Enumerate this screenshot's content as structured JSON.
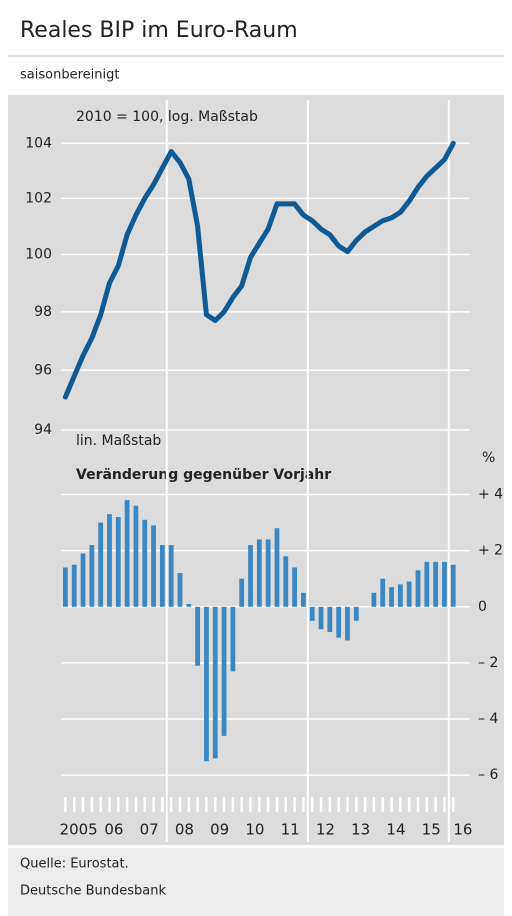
{
  "header": {
    "title": "Reales BIP im Euro-Raum",
    "subtitle": "saisonbereinigt"
  },
  "footer": {
    "source": "Quelle: Eurostat.",
    "publisher": "Deutsche Bundesbank"
  },
  "chart_data": [
    {
      "type": "line",
      "note": "2010 = 100, log. Maßstab",
      "log_scale": true,
      "color": "#0f5a94",
      "x": [
        2005.125,
        2005.375,
        2005.625,
        2005.875,
        2006.125,
        2006.375,
        2006.625,
        2006.875,
        2007.125,
        2007.375,
        2007.625,
        2007.875,
        2008.125,
        2008.375,
        2008.625,
        2008.875,
        2009.125,
        2009.375,
        2009.625,
        2009.875,
        2010.125,
        2010.375,
        2010.625,
        2010.875,
        2011.125,
        2011.375,
        2011.625,
        2011.875,
        2012.125,
        2012.375,
        2012.625,
        2012.875,
        2013.125,
        2013.375,
        2013.625,
        2013.875,
        2014.125,
        2014.375,
        2014.625,
        2014.875,
        2015.125,
        2015.375,
        2015.625,
        2015.875,
        2016.125
      ],
      "values": [
        95.1,
        95.8,
        96.5,
        97.1,
        97.9,
        99.0,
        99.6,
        100.7,
        101.4,
        102.0,
        102.5,
        103.1,
        103.7,
        103.3,
        102.7,
        101.0,
        97.9,
        97.7,
        98.0,
        98.5,
        98.9,
        99.9,
        100.4,
        100.9,
        101.8,
        101.8,
        101.8,
        101.4,
        101.2,
        100.9,
        100.7,
        100.3,
        100.1,
        100.5,
        100.8,
        101.0,
        101.2,
        101.3,
        101.5,
        101.9,
        102.4,
        102.8,
        103.1,
        103.4,
        104.0
      ],
      "xlim": [
        2005,
        2016.6
      ],
      "xgrid": [
        2008,
        2012,
        2016
      ],
      "ylim": [
        94,
        105.6
      ],
      "yticks": [
        94,
        96,
        98,
        100,
        102,
        104
      ]
    },
    {
      "type": "bar",
      "note": "lin. Maßstab",
      "title": "Veränderung gegenüber Vorjahr",
      "unit": "%",
      "color": "#3a87c4",
      "x": [
        2005.125,
        2005.375,
        2005.625,
        2005.875,
        2006.125,
        2006.375,
        2006.625,
        2006.875,
        2007.125,
        2007.375,
        2007.625,
        2007.875,
        2008.125,
        2008.375,
        2008.625,
        2008.875,
        2009.125,
        2009.375,
        2009.625,
        2009.875,
        2010.125,
        2010.375,
        2010.625,
        2010.875,
        2011.125,
        2011.375,
        2011.625,
        2011.875,
        2012.125,
        2012.375,
        2012.625,
        2012.875,
        2013.125,
        2013.375,
        2013.625,
        2013.875,
        2014.125,
        2014.375,
        2014.625,
        2014.875,
        2015.125,
        2015.375,
        2015.625,
        2015.875,
        2016.125
      ],
      "values": [
        1.4,
        1.5,
        1.9,
        2.2,
        3.0,
        3.3,
        3.2,
        3.8,
        3.6,
        3.1,
        2.9,
        2.2,
        2.2,
        1.2,
        0.1,
        -2.1,
        -5.5,
        -5.4,
        -4.6,
        -2.3,
        1.0,
        2.2,
        2.4,
        2.4,
        2.8,
        1.8,
        1.4,
        0.5,
        -0.5,
        -0.8,
        -0.9,
        -1.1,
        -1.2,
        -0.5,
        0.0,
        0.5,
        1.0,
        0.7,
        0.8,
        0.9,
        1.3,
        1.6,
        1.6,
        1.6,
        1.5
      ],
      "xlim": [
        2005,
        2016.6
      ],
      "xgrid": [
        2008,
        2012,
        2016
      ],
      "xticks": [
        {
          "value": 2005.5,
          "label": "2005"
        },
        {
          "value": 2006.5,
          "label": "06"
        },
        {
          "value": 2007.5,
          "label": "07"
        },
        {
          "value": 2008.5,
          "label": "08"
        },
        {
          "value": 2009.5,
          "label": "09"
        },
        {
          "value": 2010.5,
          "label": "10"
        },
        {
          "value": 2011.5,
          "label": "11"
        },
        {
          "value": 2012.5,
          "label": "12"
        },
        {
          "value": 2013.5,
          "label": "13"
        },
        {
          "value": 2014.5,
          "label": "14"
        },
        {
          "value": 2015.5,
          "label": "15"
        },
        {
          "value": 2016.4,
          "label": "16"
        }
      ],
      "ylim": [
        -6.6,
        6.3
      ],
      "yticks": [
        {
          "value": -6,
          "label": "– 6"
        },
        {
          "value": -4,
          "label": "– 4"
        },
        {
          "value": -2,
          "label": "– 2"
        },
        0,
        {
          "value": 2,
          "label": "+ 2"
        },
        {
          "value": 4,
          "label": "+ 4"
        }
      ]
    }
  ]
}
